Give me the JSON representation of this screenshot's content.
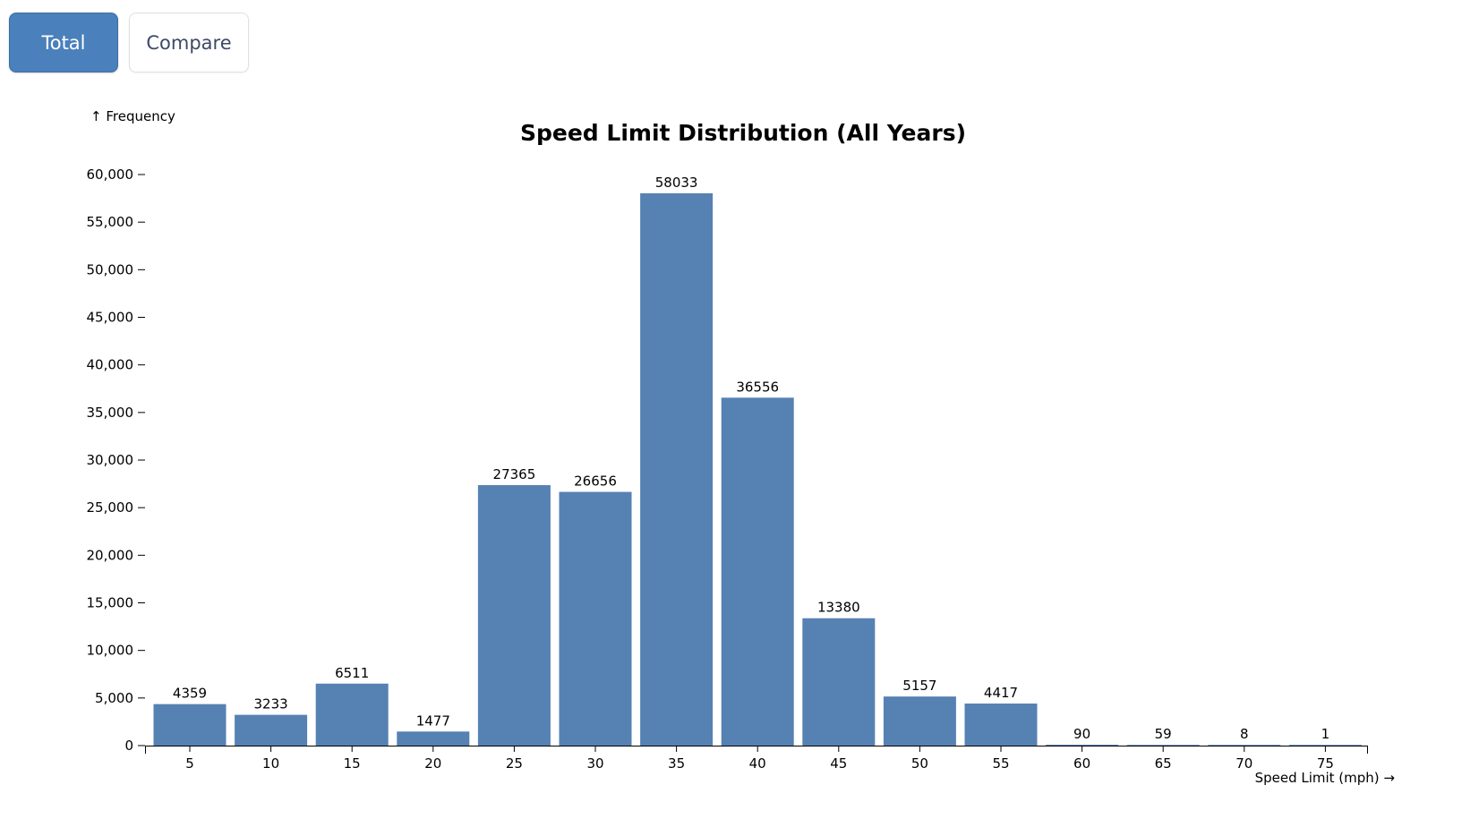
{
  "tabs": [
    {
      "label": "Total",
      "active": true
    },
    {
      "label": "Compare",
      "active": false
    }
  ],
  "colors": {
    "bar": "#5681b3",
    "active_tab": "#4a80bb",
    "axis": "#000000"
  },
  "chart_data": {
    "type": "bar",
    "title": "Speed Limit Distribution (All Years)",
    "xlabel": "Speed Limit (mph) →",
    "ylabel": "↑ Frequency",
    "categories": [
      "5",
      "10",
      "15",
      "20",
      "25",
      "30",
      "35",
      "40",
      "45",
      "50",
      "55",
      "60",
      "65",
      "70",
      "75"
    ],
    "values": [
      4359,
      3233,
      6511,
      1477,
      27365,
      26656,
      58033,
      36556,
      13380,
      5157,
      4417,
      90,
      59,
      8,
      1
    ],
    "ylim": [
      0,
      60000
    ],
    "yticks": [
      0,
      5000,
      10000,
      15000,
      20000,
      25000,
      30000,
      35000,
      40000,
      45000,
      50000,
      55000,
      60000
    ],
    "ytick_labels": [
      "0",
      "5,000",
      "10,000",
      "15,000",
      "20,000",
      "25,000",
      "30,000",
      "35,000",
      "40,000",
      "45,000",
      "50,000",
      "55,000",
      "60,000"
    ],
    "grid": false,
    "legend": "none"
  }
}
